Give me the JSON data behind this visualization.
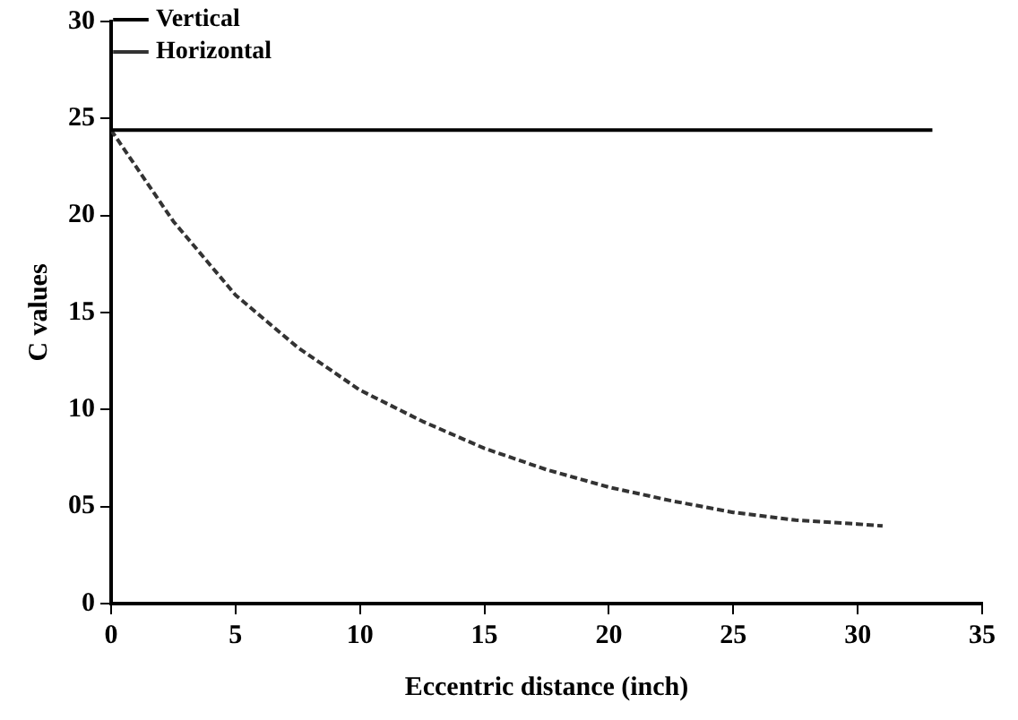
{
  "chart_data": {
    "type": "line",
    "xlabel": "Eccentric distance (inch)",
    "ylabel": "C values",
    "xlim": [
      0,
      35
    ],
    "xticks": [
      0,
      5,
      10,
      15,
      20,
      25,
      30,
      35
    ],
    "ylim": [
      0,
      30
    ],
    "yticks": [
      0,
      {
        "value": 5,
        "label": "05"
      },
      10,
      15,
      20,
      25,
      30
    ],
    "series": [
      {
        "name": "Vertical",
        "color": "#000000",
        "line_style": "solid",
        "x": [
          0,
          33
        ],
        "values": [
          24.4,
          24.4
        ]
      },
      {
        "name": "Horizontal",
        "color": "#333333",
        "line_style": "dashed",
        "x": [
          0,
          2.5,
          5,
          7.5,
          10,
          12.5,
          15,
          17.5,
          20,
          22.5,
          25,
          27.5,
          30,
          31
        ],
        "values": [
          24.4,
          19.7,
          15.9,
          13.2,
          11.0,
          9.4,
          8.0,
          6.9,
          6.0,
          5.3,
          4.7,
          4.3,
          4.1,
          4.0
        ]
      }
    ],
    "grid": false,
    "legend": "top left",
    "marker": "none"
  }
}
